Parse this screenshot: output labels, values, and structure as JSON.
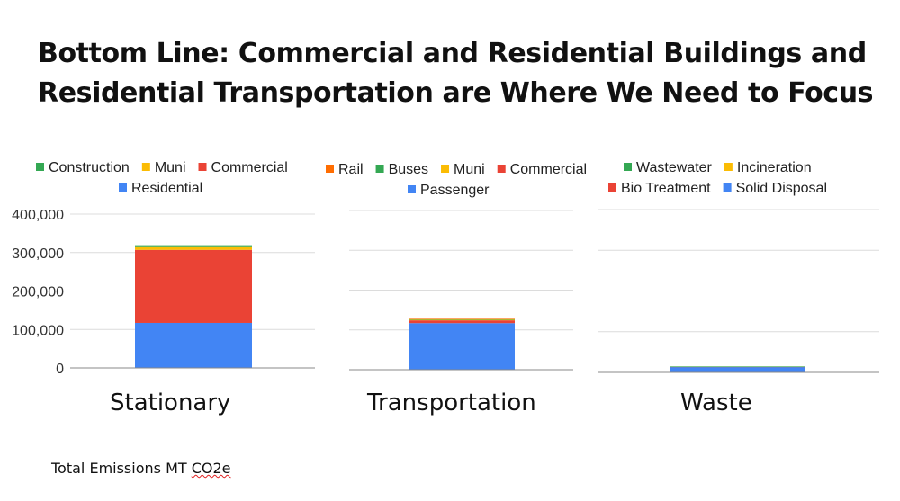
{
  "slide": {
    "title_line1": "Bottom Line: Commercial and Residential Buildings and",
    "title_line2": "Residential Transportation are Where We Need to Focus",
    "footnote_prefix": "Total  Emissions MT ",
    "footnote_unit": "CO2e"
  },
  "colors": {
    "Construction": "#34a853",
    "Muni": "#fbbc04",
    "Commercial": "#ea4335",
    "Residential": "#4285f4",
    "Rail": "#ff6d01",
    "Buses": "#34a853",
    "Passenger": "#4285f4",
    "Wastewater": "#34a853",
    "Incineration": "#fbbc04",
    "Bio Treatment": "#ea4335",
    "Solid Disposal": "#4285f4",
    "grid": "#dcdcdc",
    "axis": "#888888"
  },
  "chart_data": [
    {
      "type": "bar",
      "stacked": true,
      "category": "Stationary",
      "ylim": [
        0,
        400000
      ],
      "y_ticks": [
        0,
        100000,
        200000,
        300000,
        400000
      ],
      "y_tick_labels": [
        "0",
        "100,000",
        "200,000",
        "300,000",
        "400,000"
      ],
      "legend_rows": [
        [
          "Construction",
          "Muni",
          "Commercial"
        ],
        [
          "Residential"
        ]
      ],
      "series": [
        {
          "name": "Residential",
          "value": 117000
        },
        {
          "name": "Commercial",
          "value": 190000
        },
        {
          "name": "Muni",
          "value": 7000
        },
        {
          "name": "Construction",
          "value": 5000
        }
      ]
    },
    {
      "type": "bar",
      "stacked": true,
      "category": "Transportation",
      "ylim": [
        0,
        400000
      ],
      "legend_rows": [
        [
          "Rail",
          "Buses",
          "Muni",
          "Commercial"
        ],
        [
          "Passenger"
        ]
      ],
      "series": [
        {
          "name": "Passenger",
          "value": 117000
        },
        {
          "name": "Commercial",
          "value": 7000
        },
        {
          "name": "Muni",
          "value": 2000
        },
        {
          "name": "Buses",
          "value": 1000
        },
        {
          "name": "Rail",
          "value": 1000
        }
      ]
    },
    {
      "type": "bar",
      "stacked": true,
      "category": "Waste",
      "ylim": [
        0,
        400000
      ],
      "legend_rows": [
        [
          "Wastewater",
          "Incineration"
        ],
        [
          "Bio Treatment",
          "Solid Disposal"
        ]
      ],
      "series": [
        {
          "name": "Solid Disposal",
          "value": 14000
        },
        {
          "name": "Bio Treatment",
          "value": 300
        },
        {
          "name": "Incineration",
          "value": 200
        },
        {
          "name": "Wastewater",
          "value": 100
        }
      ]
    }
  ]
}
